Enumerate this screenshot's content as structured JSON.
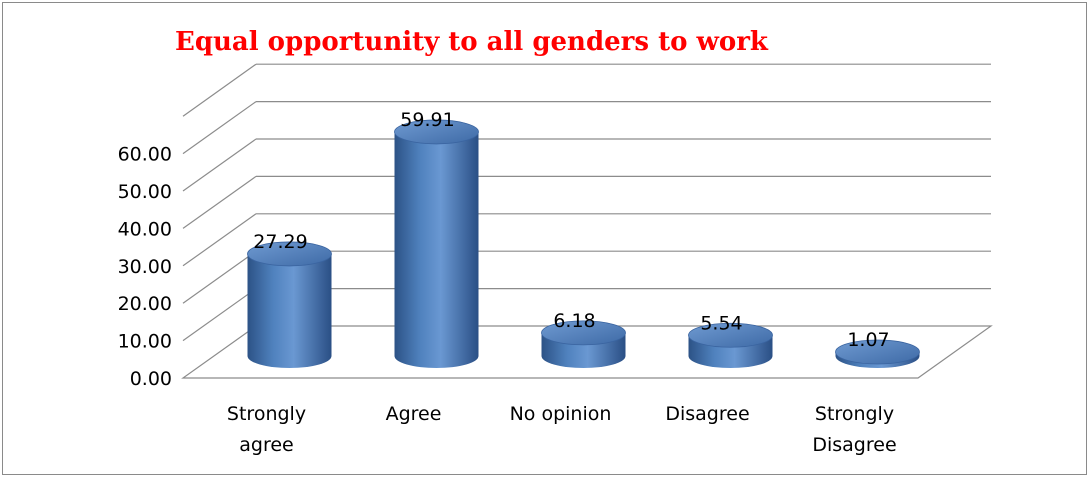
{
  "chart_data": {
    "type": "bar",
    "title": "Equal opportunity to all genders to work",
    "categories": [
      [
        "Strongly",
        "agree"
      ],
      [
        "Agree"
      ],
      [
        "No opinion"
      ],
      [
        "Disagree"
      ],
      [
        "Strongly",
        "Disagree"
      ]
    ],
    "values": [
      27.29,
      59.91,
      6.18,
      5.54,
      1.07
    ],
    "value_labels": [
      "27.29",
      "59.91",
      "6.18",
      "5.54",
      "1.07"
    ],
    "yticks": [
      "0.00",
      "10.00",
      "20.00",
      "30.00",
      "40.00",
      "50.00",
      "60.00"
    ],
    "ylim": [
      0,
      60
    ],
    "grid": true,
    "legend": "none",
    "style": "3d-cylinder",
    "bar_color": "#4f81bd",
    "title_color": "#ff0000"
  }
}
